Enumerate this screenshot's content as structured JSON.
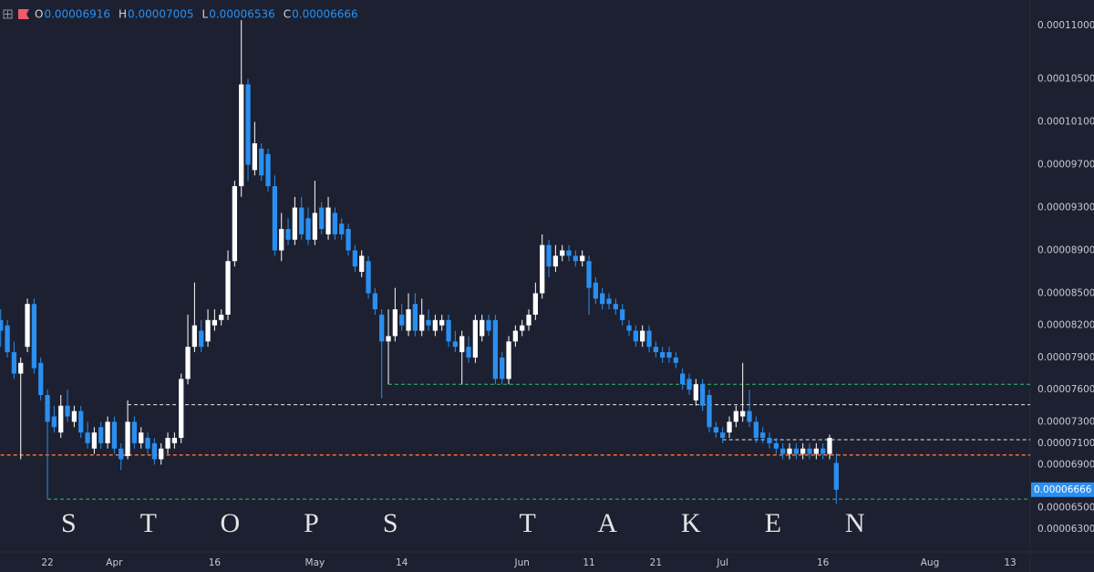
{
  "chart_data": {
    "type": "candlestick",
    "legend": [
      {
        "key": "O",
        "value": "0.00006916"
      },
      {
        "key": "H",
        "value": "0.00007005"
      },
      {
        "key": "L",
        "value": "0.00006536"
      },
      {
        "key": "C",
        "value": "0.00006666"
      }
    ],
    "annotation": "STOPS TAKEN",
    "up_color": "#ffffff",
    "down_color": "#2a8ff0",
    "xlim": [
      73.9,
      228
    ],
    "xticks": [
      {
        "value": 81,
        "label": "22"
      },
      {
        "value": 91,
        "label": "Apr"
      },
      {
        "value": 106,
        "label": "16"
      },
      {
        "value": 121,
        "label": "May"
      },
      {
        "value": 134,
        "label": "14"
      },
      {
        "value": 152,
        "label": "Jun"
      },
      {
        "value": 162,
        "label": "11"
      },
      {
        "value": 172,
        "label": "21"
      },
      {
        "value": 182,
        "label": "Jul"
      },
      {
        "value": 197,
        "label": "16"
      },
      {
        "value": 213,
        "label": "Aug"
      },
      {
        "value": 225,
        "label": "13"
      }
    ],
    "ylim": [
      6.085e-05,
      0.00011238
    ],
    "yticks": [
      {
        "value": 0.00011,
        "label": "0.00011000"
      },
      {
        "value": 0.000105,
        "label": "0.00010500"
      },
      {
        "value": 0.000101,
        "label": "0.00010100"
      },
      {
        "value": 9.7e-05,
        "label": "0.00009700"
      },
      {
        "value": 9.3e-05,
        "label": "0.00009300"
      },
      {
        "value": 8.9e-05,
        "label": "0.00008900"
      },
      {
        "value": 8.5e-05,
        "label": "0.00008500"
      },
      {
        "value": 8.2e-05,
        "label": "0.00008200"
      },
      {
        "value": 7.9e-05,
        "label": "0.00007900"
      },
      {
        "value": 7.6e-05,
        "label": "0.00007600"
      },
      {
        "value": 7.3e-05,
        "label": "0.00007300"
      },
      {
        "value": 7.1e-05,
        "label": "0.00007100"
      },
      {
        "value": 6.9e-05,
        "label": "0.00006900"
      },
      {
        "value": 6.5e-05,
        "label": "0.00006500"
      },
      {
        "value": 6.3e-05,
        "label": "0.00006300"
      }
    ],
    "levels": [
      {
        "value": 7.65e-05,
        "color": "#2fbf71",
        "from": 132
      },
      {
        "value": 7.46e-05,
        "color": "#e6e6e6",
        "from": 93
      },
      {
        "value": 6.99e-05,
        "color": "#f2703a",
        "from": 74
      },
      {
        "value": 7.133e-05,
        "color": "#e6e6e6",
        "from": 182
      },
      {
        "value": 6.578e-05,
        "color": "#2fbf71",
        "from": 81
      }
    ],
    "x": [
      74,
      75,
      76,
      77,
      78,
      79,
      80,
      81,
      82,
      83,
      84,
      85,
      86,
      87,
      88,
      89,
      90,
      91,
      92,
      93,
      94,
      95,
      96,
      97,
      98,
      99,
      100,
      101,
      102,
      103,
      104,
      105,
      106,
      107,
      108,
      109,
      110,
      111,
      112,
      113,
      114,
      115,
      116,
      117,
      118,
      119,
      120,
      121,
      122,
      123,
      124,
      125,
      126,
      127,
      128,
      129,
      130,
      131,
      132,
      133,
      134,
      135,
      136,
      137,
      138,
      139,
      140,
      141,
      142,
      143,
      144,
      145,
      146,
      147,
      148,
      149,
      150,
      151,
      152,
      153,
      154,
      155,
      156,
      157,
      158,
      159,
      160,
      161,
      162,
      163,
      164,
      165,
      166,
      167,
      168,
      169,
      170,
      171,
      172,
      173,
      174,
      175,
      176,
      177,
      178,
      179,
      180,
      181,
      182,
      183,
      184,
      185,
      186,
      187,
      188,
      189,
      190,
      191,
      192,
      193,
      194,
      195,
      196,
      197,
      198,
      199
    ],
    "ohlc": [
      [
        8.25e-05,
        8.35e-05,
        8e-05,
        8.15e-05
      ],
      [
        8.2e-05,
        8.25e-05,
        7.9e-05,
        7.95e-05
      ],
      [
        7.95e-05,
        8.05e-05,
        7.7e-05,
        7.75e-05
      ],
      [
        7.75e-05,
        7.9e-05,
        6.95e-05,
        7.85e-05
      ],
      [
        8e-05,
        8.45e-05,
        7.95e-05,
        8.4e-05
      ],
      [
        8.4e-05,
        8.45e-05,
        7.75e-05,
        7.8e-05
      ],
      [
        7.85e-05,
        7.9e-05,
        7.5e-05,
        7.55e-05
      ],
      [
        7.55e-05,
        7.6e-05,
        6.58e-05,
        7.3e-05
      ],
      [
        7.35e-05,
        7.45e-05,
        7.2e-05,
        7.25e-05
      ],
      [
        7.2e-05,
        7.55e-05,
        7.15e-05,
        7.45e-05
      ],
      [
        7.45e-05,
        7.6e-05,
        7.3e-05,
        7.35e-05
      ],
      [
        7.3e-05,
        7.45e-05,
        7.25e-05,
        7.4e-05
      ],
      [
        7.4e-05,
        7.45e-05,
        7.15e-05,
        7.2e-05
      ],
      [
        7.2e-05,
        7.3e-05,
        7.05e-05,
        7.1e-05
      ],
      [
        7.05e-05,
        7.25e-05,
        7e-05,
        7.2e-05
      ],
      [
        7.25e-05,
        7.3e-05,
        7.05e-05,
        7.1e-05
      ],
      [
        7.1e-05,
        7.35e-05,
        7.05e-05,
        7.3e-05
      ],
      [
        7.3e-05,
        7.35e-05,
        7e-05,
        7.05e-05
      ],
      [
        7.05e-05,
        7.1e-05,
        6.85e-05,
        6.95e-05
      ],
      [
        6.98e-05,
        7.5e-05,
        6.95e-05,
        7.3e-05
      ],
      [
        7.3e-05,
        7.35e-05,
        7.05e-05,
        7.1e-05
      ],
      [
        7.1e-05,
        7.25e-05,
        7.05e-05,
        7.2e-05
      ],
      [
        7.15e-05,
        7.2e-05,
        7e-05,
        7.05e-05
      ],
      [
        7.1e-05,
        7.15e-05,
        6.9e-05,
        6.95e-05
      ],
      [
        6.95e-05,
        7.1e-05,
        6.9e-05,
        7.05e-05
      ],
      [
        7.05e-05,
        7.2e-05,
        7e-05,
        7.15e-05
      ],
      [
        7.1e-05,
        7.2e-05,
        7.05e-05,
        7.15e-05
      ],
      [
        7.15e-05,
        7.75e-05,
        7.1e-05,
        7.7e-05
      ],
      [
        7.7e-05,
        8.3e-05,
        7.65e-05,
        8e-05
      ],
      [
        8e-05,
        8.6e-05,
        7.95e-05,
        8.2e-05
      ],
      [
        8.15e-05,
        8.25e-05,
        7.95e-05,
        8e-05
      ],
      [
        8.05e-05,
        8.35e-05,
        8e-05,
        8.25e-05
      ],
      [
        8.2e-05,
        8.35e-05,
        8.15e-05,
        8.25e-05
      ],
      [
        8.25e-05,
        8.35e-05,
        8.2e-05,
        8.3e-05
      ],
      [
        8.3e-05,
        8.9e-05,
        8.25e-05,
        8.8e-05
      ],
      [
        8.8e-05,
        9.55e-05,
        8.75e-05,
        9.5e-05
      ],
      [
        9.5e-05,
        0.0001105,
        9.4e-05,
        0.0001045
      ],
      [
        0.0001045,
        0.000105,
        9.55e-05,
        9.7e-05
      ],
      [
        9.65e-05,
        0.000101,
        9.6e-05,
        9.9e-05
      ],
      [
        9.85e-05,
        9.9e-05,
        9.55e-05,
        9.6e-05
      ],
      [
        9.8e-05,
        9.85e-05,
        9.45e-05,
        9.5e-05
      ],
      [
        9.5e-05,
        9.6e-05,
        8.85e-05,
        8.9e-05
      ],
      [
        8.9e-05,
        9.25e-05,
        8.8e-05,
        9.1e-05
      ],
      [
        9.1e-05,
        9.2e-05,
        8.95e-05,
        9e-05
      ],
      [
        9e-05,
        9.4e-05,
        8.95e-05,
        9.3e-05
      ],
      [
        9.3e-05,
        9.4e-05,
        9e-05,
        9.05e-05
      ],
      [
        9.2e-05,
        9.3e-05,
        8.95e-05,
        9e-05
      ],
      [
        9e-05,
        9.55e-05,
        8.95e-05,
        9.25e-05
      ],
      [
        9.3e-05,
        9.35e-05,
        9.05e-05,
        9.1e-05
      ],
      [
        9.05e-05,
        9.4e-05,
        9e-05,
        9.3e-05
      ],
      [
        9.25e-05,
        9.3e-05,
        9e-05,
        9.05e-05
      ],
      [
        9.15e-05,
        9.2e-05,
        9e-05,
        9.05e-05
      ],
      [
        9.1e-05,
        9.15e-05,
        8.85e-05,
        8.9e-05
      ],
      [
        8.9e-05,
        8.95e-05,
        8.7e-05,
        8.75e-05
      ],
      [
        8.7e-05,
        8.9e-05,
        8.65e-05,
        8.85e-05
      ],
      [
        8.8e-05,
        8.85e-05,
        8.45e-05,
        8.5e-05
      ],
      [
        8.5e-05,
        8.55e-05,
        8.3e-05,
        8.35e-05
      ],
      [
        8.3e-05,
        8.35e-05,
        7.52e-05,
        8.05e-05
      ],
      [
        8.05e-05,
        8.35e-05,
        7.65e-05,
        8.1e-05
      ],
      [
        8.1e-05,
        8.55e-05,
        8.05e-05,
        8.35e-05
      ],
      [
        8.3e-05,
        8.4e-05,
        8.15e-05,
        8.2e-05
      ],
      [
        8.15e-05,
        8.5e-05,
        8.1e-05,
        8.35e-05
      ],
      [
        8.4e-05,
        8.5e-05,
        8.1e-05,
        8.15e-05
      ],
      [
        8.15e-05,
        8.45e-05,
        8.1e-05,
        8.3e-05
      ],
      [
        8.25e-05,
        8.35e-05,
        8.15e-05,
        8.2e-05
      ],
      [
        8.15e-05,
        8.3e-05,
        8.1e-05,
        8.25e-05
      ],
      [
        8.2e-05,
        8.3e-05,
        8.15e-05,
        8.25e-05
      ],
      [
        8.25e-05,
        8.3e-05,
        8e-05,
        8.05e-05
      ],
      [
        8.05e-05,
        8.15e-05,
        7.95e-05,
        8e-05
      ],
      [
        7.95e-05,
        8.15e-05,
        7.65e-05,
        8.1e-05
      ],
      [
        8e-05,
        8.1e-05,
        7.85e-05,
        7.9e-05
      ],
      [
        7.9e-05,
        8.3e-05,
        7.85e-05,
        8.25e-05
      ],
      [
        8.1e-05,
        8.3e-05,
        8.05e-05,
        8.25e-05
      ],
      [
        8.25e-05,
        8.3e-05,
        8.1e-05,
        8.15e-05
      ],
      [
        8.25e-05,
        8.3e-05,
        7.65e-05,
        7.7e-05
      ],
      [
        7.9e-05,
        7.95e-05,
        7.65e-05,
        7.7e-05
      ],
      [
        7.7e-05,
        8.1e-05,
        7.65e-05,
        8.05e-05
      ],
      [
        8.05e-05,
        8.2e-05,
        8e-05,
        8.15e-05
      ],
      [
        8.15e-05,
        8.25e-05,
        8.1e-05,
        8.2e-05
      ],
      [
        8.2e-05,
        8.35e-05,
        8.15e-05,
        8.3e-05
      ],
      [
        8.3e-05,
        8.6e-05,
        8.25e-05,
        8.5e-05
      ],
      [
        8.5e-05,
        9.05e-05,
        8.45e-05,
        8.95e-05
      ],
      [
        8.95e-05,
        9e-05,
        8.65e-05,
        8.75e-05
      ],
      [
        8.75e-05,
        8.95e-05,
        8.7e-05,
        8.85e-05
      ],
      [
        8.85e-05,
        8.95e-05,
        8.8e-05,
        8.9e-05
      ],
      [
        8.9e-05,
        8.95e-05,
        8.8e-05,
        8.85e-05
      ],
      [
        8.85e-05,
        8.9e-05,
        8.75e-05,
        8.8e-05
      ],
      [
        8.8e-05,
        8.9e-05,
        8.75e-05,
        8.85e-05
      ],
      [
        8.8e-05,
        8.85e-05,
        8.3e-05,
        8.55e-05
      ],
      [
        8.6e-05,
        8.65e-05,
        8.4e-05,
        8.45e-05
      ],
      [
        8.5e-05,
        8.55e-05,
        8.35e-05,
        8.4e-05
      ],
      [
        8.45e-05,
        8.5e-05,
        8.35e-05,
        8.4e-05
      ],
      [
        8.4e-05,
        8.45e-05,
        8.3e-05,
        8.35e-05
      ],
      [
        8.35e-05,
        8.4e-05,
        8.2e-05,
        8.25e-05
      ],
      [
        8.2e-05,
        8.25e-05,
        8.1e-05,
        8.15e-05
      ],
      [
        8.15e-05,
        8.2e-05,
        8e-05,
        8.05e-05
      ],
      [
        8.05e-05,
        8.2e-05,
        8e-05,
        8.15e-05
      ],
      [
        8.15e-05,
        8.2e-05,
        7.95e-05,
        8e-05
      ],
      [
        8e-05,
        8.05e-05,
        7.9e-05,
        7.95e-05
      ],
      [
        7.95e-05,
        8e-05,
        7.85e-05,
        7.9e-05
      ],
      [
        7.95e-05,
        8e-05,
        7.85e-05,
        7.9e-05
      ],
      [
        7.9e-05,
        7.95e-05,
        7.8e-05,
        7.85e-05
      ],
      [
        7.75e-05,
        7.8e-05,
        7.6e-05,
        7.65e-05
      ],
      [
        7.7e-05,
        7.75e-05,
        7.55e-05,
        7.6e-05
      ],
      [
        7.5e-05,
        7.7e-05,
        7.45e-05,
        7.65e-05
      ],
      [
        7.65e-05,
        7.7e-05,
        7.4e-05,
        7.45e-05
      ],
      [
        7.55e-05,
        7.6e-05,
        7.2e-05,
        7.25e-05
      ],
      [
        7.25e-05,
        7.3e-05,
        7.15e-05,
        7.2e-05
      ],
      [
        7.2e-05,
        7.25e-05,
        7.1e-05,
        7.15e-05
      ],
      [
        7.2e-05,
        7.35e-05,
        7.15e-05,
        7.3e-05
      ],
      [
        7.3e-05,
        7.45e-05,
        7.25e-05,
        7.4e-05
      ],
      [
        7.35e-05,
        7.85e-05,
        7.3e-05,
        7.4e-05
      ],
      [
        7.4e-05,
        7.6e-05,
        7.25e-05,
        7.3e-05
      ],
      [
        7.3e-05,
        7.35e-05,
        7.1e-05,
        7.15e-05
      ],
      [
        7.2e-05,
        7.25e-05,
        7.1e-05,
        7.15e-05
      ],
      [
        7.15e-05,
        7.2e-05,
        7.05e-05,
        7.1e-05
      ],
      [
        7.1e-05,
        7.15e-05,
        7e-05,
        7.05e-05
      ],
      [
        7.05e-05,
        7.1e-05,
        6.95e-05,
        7e-05
      ],
      [
        7e-05,
        7.1e-05,
        6.95e-05,
        7.05e-05
      ],
      [
        7.05e-05,
        7.1e-05,
        6.95e-05,
        7e-05
      ],
      [
        7e-05,
        7.1e-05,
        6.95e-05,
        7.05e-05
      ],
      [
        7.05e-05,
        7.1e-05,
        6.95e-05,
        7e-05
      ],
      [
        7e-05,
        7.1e-05,
        6.95e-05,
        7.05e-05
      ],
      [
        7.05e-05,
        7.1e-05,
        6.95e-05,
        7e-05
      ],
      [
        7e-05,
        7.18e-05,
        6.95e-05,
        7.15e-05
      ],
      [
        6.916e-05,
        7.005e-05,
        6.536e-05,
        6.666e-05
      ]
    ]
  }
}
